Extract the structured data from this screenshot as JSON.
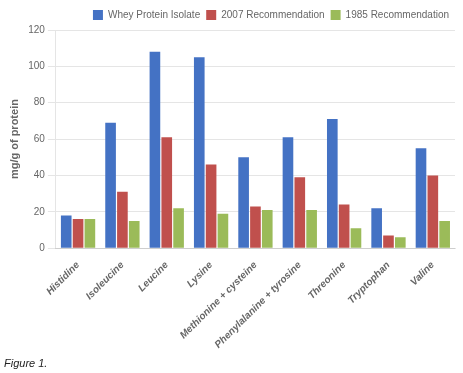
{
  "chart_data": {
    "type": "bar",
    "categories": [
      "Histidine",
      "Isoleucine",
      "Leucine",
      "Lysine",
      "Methionine + cysteine",
      "Phenylalanine + tyrosine",
      "Threonine",
      "Tryptophan",
      "Valine"
    ],
    "series": [
      {
        "name": "Whey Protein Isolate",
        "color": "#4472C4",
        "values": [
          18,
          69,
          108,
          105,
          50,
          61,
          71,
          22,
          55
        ]
      },
      {
        "name": "2007 Recommendation",
        "color": "#C0504D",
        "values": [
          16,
          31,
          61,
          46,
          23,
          39,
          24,
          7,
          40
        ]
      },
      {
        "name": "1985 Recommendation",
        "color": "#9BBB59",
        "values": [
          16,
          15,
          22,
          19,
          21,
          21,
          11,
          6,
          15
        ]
      }
    ],
    "ylabel": "mg/g of protein",
    "ylim": [
      0,
      120
    ],
    "yticks": [
      0,
      20,
      40,
      60,
      80,
      100,
      120
    ],
    "grid": true,
    "legend": "upper right",
    "annotations": [
      "Figure 1."
    ]
  }
}
